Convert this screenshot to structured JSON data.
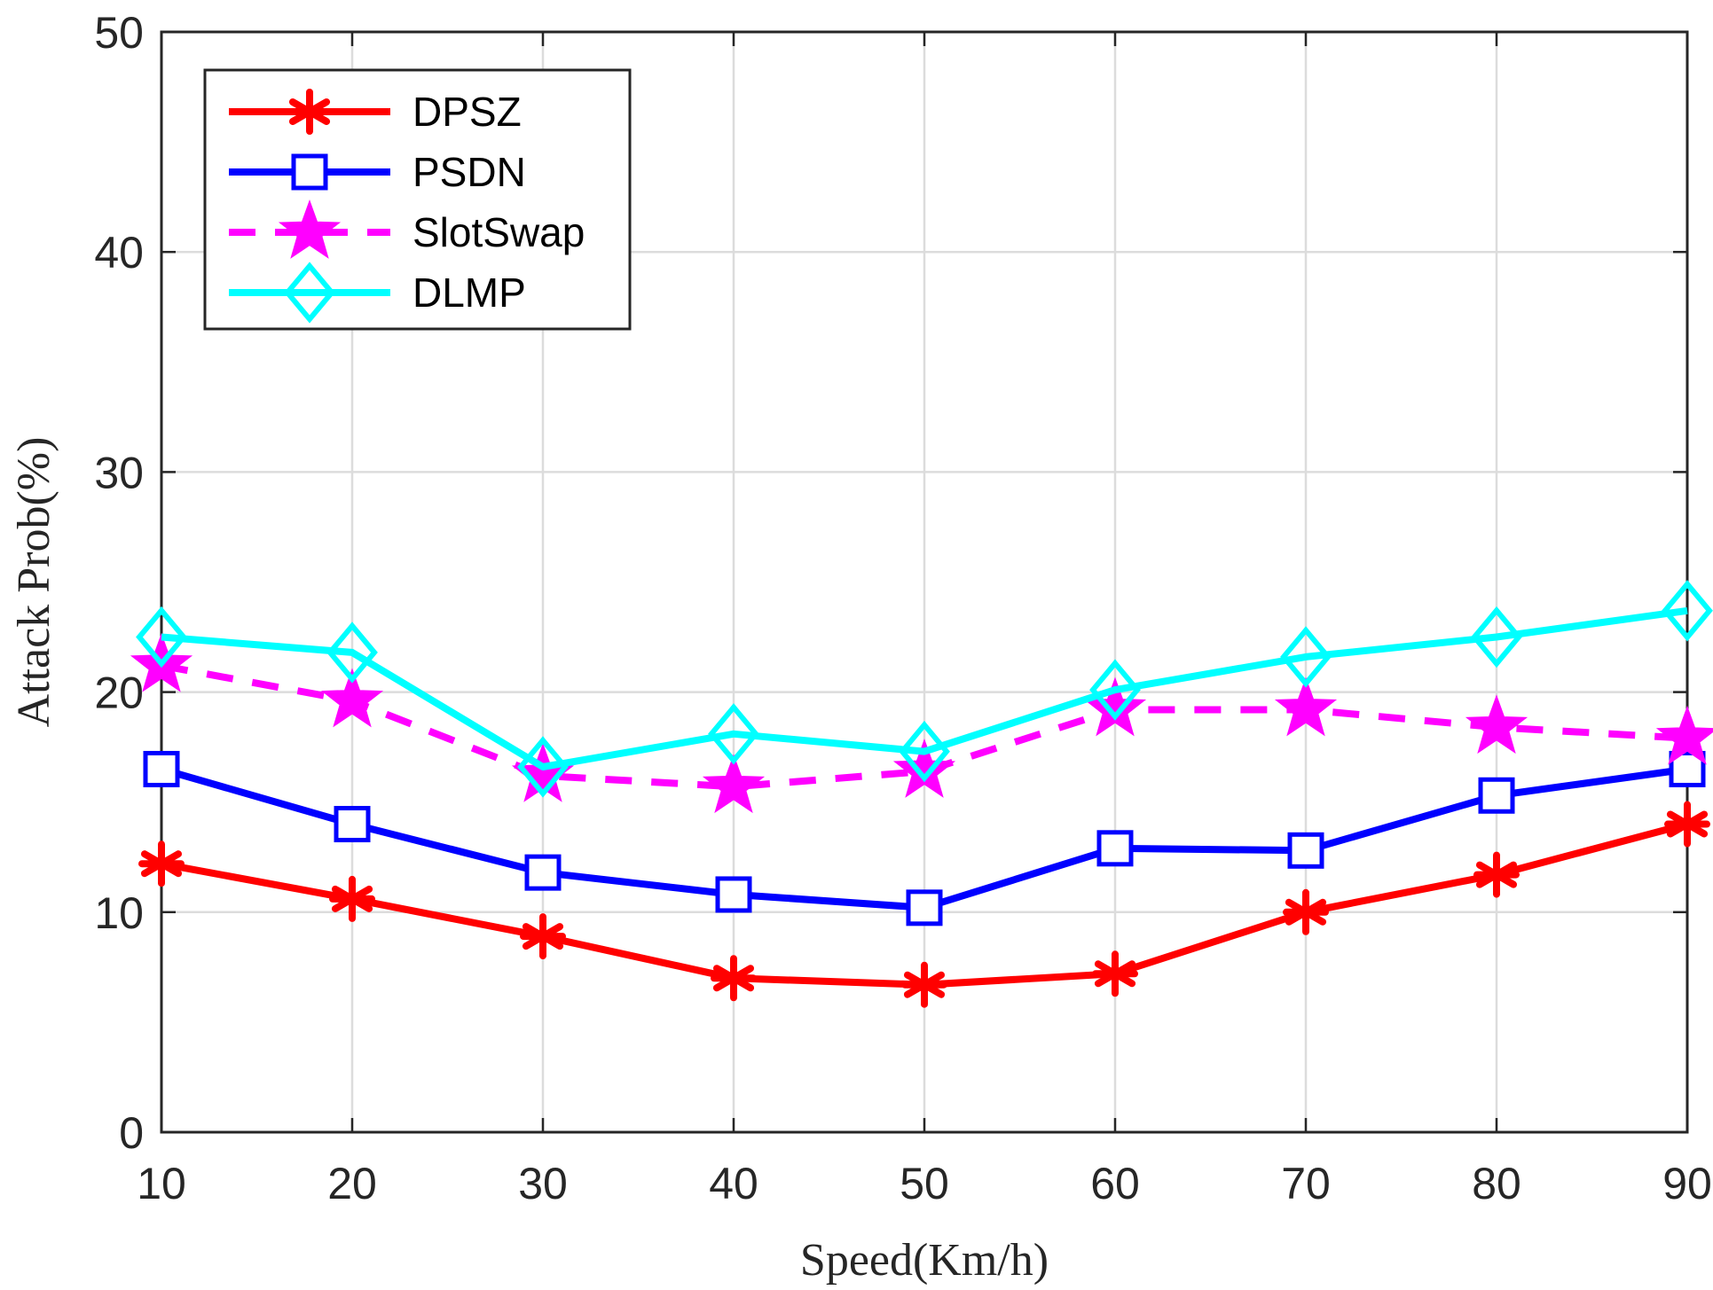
{
  "chart_data": {
    "type": "line",
    "xlabel": "Speed(Km/h)",
    "ylabel": "Attack Prob(%)",
    "xlim": [
      10,
      90
    ],
    "ylim": [
      0,
      50
    ],
    "x_ticks": [
      "10",
      "20",
      "30",
      "40",
      "50",
      "60",
      "70",
      "80",
      "90"
    ],
    "y_ticks": [
      "0",
      "10",
      "20",
      "30",
      "40",
      "50"
    ],
    "x": [
      10,
      20,
      30,
      40,
      50,
      60,
      70,
      80,
      90
    ],
    "grid": true,
    "legend_position": "top-left",
    "series": [
      {
        "name": "DPSZ",
        "color": "#ff0000",
        "marker": "asterisk",
        "line_style": "solid",
        "values": [
          12.2,
          10.6,
          8.9,
          7.0,
          6.7,
          7.2,
          10.0,
          11.7,
          14.0
        ]
      },
      {
        "name": "PSDN",
        "color": "#0000ff",
        "marker": "square",
        "line_style": "solid",
        "values": [
          16.5,
          14.0,
          11.8,
          10.8,
          10.2,
          12.9,
          12.8,
          15.3,
          16.5
        ]
      },
      {
        "name": "SlotSwap",
        "color": "#ff00ff",
        "marker": "star",
        "line_style": "dashed",
        "values": [
          21.2,
          19.6,
          16.2,
          15.7,
          16.4,
          19.2,
          19.2,
          18.4,
          17.9
        ]
      },
      {
        "name": "DLMP",
        "color": "#00ffff",
        "marker": "diamond",
        "line_style": "solid",
        "values": [
          22.5,
          21.8,
          16.6,
          18.1,
          17.3,
          20.1,
          21.6,
          22.5,
          23.7
        ]
      }
    ]
  }
}
